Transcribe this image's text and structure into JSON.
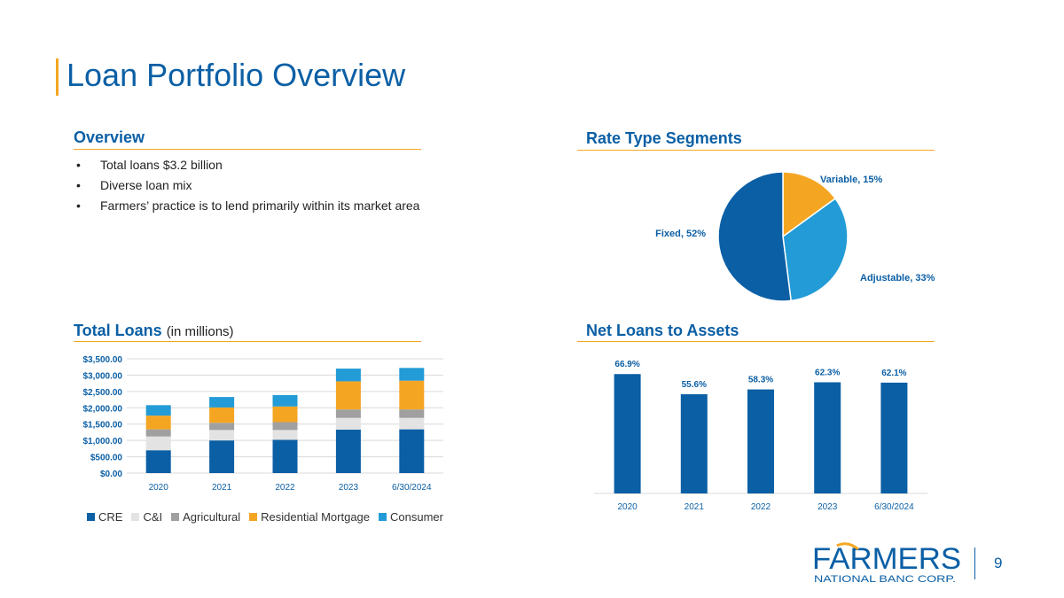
{
  "slide": {
    "title": "Loan Portfolio Overview",
    "page_number": "9"
  },
  "overview": {
    "heading": "Overview",
    "bullets": [
      "Total loans $3.2 billion",
      "Diverse loan mix",
      "Farmers’ practice is to lend primarily within its market area"
    ]
  },
  "rate_type": {
    "heading": "Rate Type Segments"
  },
  "total_loans": {
    "heading": "Total Loans",
    "heading_sub": "(in millions)"
  },
  "net_loans": {
    "heading": "Net Loans to Assets"
  },
  "logo": {
    "name": "FARMERS",
    "tagline": "NATIONAL BANC CORP."
  },
  "colors": {
    "brand_blue": "#0B5FA5",
    "accent_orange": "#F4A623",
    "cre": "#0B5FA5",
    "ci": "#E3E3E3",
    "agricultural": "#A0A0A0",
    "residential": "#F4A623",
    "consumer": "#229BD6",
    "adjustable": "#229BD6"
  },
  "chart_data": [
    {
      "id": "rate-type",
      "type": "pie",
      "title": "Rate Type Segments",
      "slices": [
        {
          "label": "Variable",
          "value": 15,
          "display": "Variable, 15%"
        },
        {
          "label": "Adjustable",
          "value": 33,
          "display": "Adjustable, 33%"
        },
        {
          "label": "Fixed",
          "value": 52,
          "display": "Fixed, 52%"
        }
      ]
    },
    {
      "id": "total-loans",
      "type": "bar",
      "stacked": true,
      "title": "Total Loans (in millions)",
      "categories": [
        "2020",
        "2021",
        "2022",
        "2023",
        "6/30/2024"
      ],
      "series": [
        {
          "name": "CRE",
          "values": [
            700,
            1000,
            1020,
            1330,
            1340
          ]
        },
        {
          "name": "C&I",
          "values": [
            420,
            320,
            300,
            360,
            350
          ]
        },
        {
          "name": "Agricultural",
          "values": [
            220,
            220,
            240,
            260,
            260
          ]
        },
        {
          "name": "Residential Mortgage",
          "values": [
            420,
            470,
            480,
            860,
            880
          ]
        },
        {
          "name": "Consumer",
          "values": [
            320,
            320,
            350,
            390,
            390
          ]
        }
      ],
      "ylim": [
        0,
        3500
      ],
      "yticks": [
        0,
        500,
        1000,
        1500,
        2000,
        2500,
        3000,
        3500
      ],
      "ytick_labels": [
        "$0.00",
        "$500.00",
        "$1,000.00",
        "$1,500.00",
        "$2,000.00",
        "$2,500.00",
        "$3,000.00",
        "$3,500.00"
      ],
      "grid": true,
      "legend": "bottom"
    },
    {
      "id": "net-loans",
      "type": "bar",
      "title": "Net Loans to Assets",
      "categories": [
        "2020",
        "2021",
        "2022",
        "2023",
        "6/30/2024"
      ],
      "values": [
        66.9,
        55.6,
        58.3,
        62.3,
        62.1
      ],
      "labels": [
        "66.9%",
        "55.6%",
        "58.3%",
        "62.3%",
        "62.1%"
      ],
      "ylim": [
        0,
        70
      ]
    }
  ]
}
